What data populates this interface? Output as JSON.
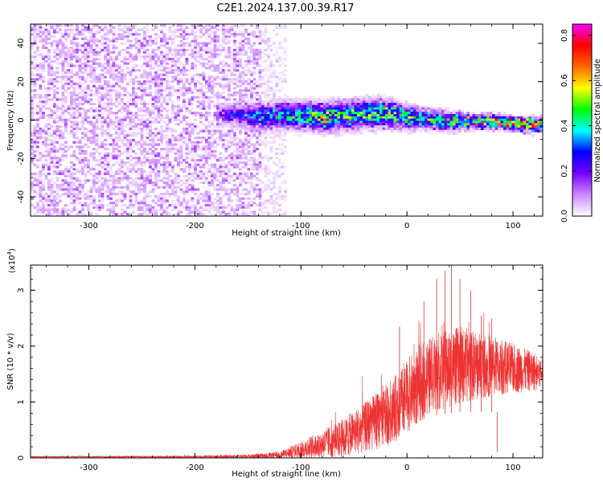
{
  "title": "C2E1.2024.137.00.39.R17",
  "chart_data": [
    {
      "type": "heatmap",
      "xlabel": "Height of straight line (km)",
      "ylabel": "Frequency (Hz)",
      "xlim": [
        -355,
        128
      ],
      "ylim": [
        -50,
        50
      ],
      "xticks": [
        -300,
        -200,
        -100,
        0,
        100
      ],
      "xtick_labels": [
        "-300",
        "-200",
        "-100",
        "0",
        "100"
      ],
      "yticks": [
        -40,
        -20,
        0,
        20,
        40
      ],
      "ytick_labels": [
        "-40",
        "-20",
        "0",
        "20",
        "40"
      ],
      "colorbar": {
        "label": "Normalized spectral amplitude",
        "range": [
          0.0,
          0.85
        ],
        "ticks": [
          0.0,
          0.2,
          0.4,
          0.6,
          0.8
        ],
        "tick_labels": [
          "0.0",
          "0.2",
          "0.4",
          "0.6",
          "0.8"
        ],
        "colors": [
          "#ffffff",
          "#cc88ff",
          "#7700ff",
          "#0000ff",
          "#00ffff",
          "#00ff00",
          "#ffff00",
          "#ff6600",
          "#ff0000",
          "#ff00ff"
        ]
      },
      "regions": [
        {
          "x": [
            -355,
            -140
          ],
          "y": [
            -50,
            50
          ],
          "typical_amplitude": 0.05,
          "peak_amplitude": 0.12
        },
        {
          "x": [
            -140,
            -115
          ],
          "y": [
            -50,
            50
          ],
          "typical_amplitude": 0.02,
          "peak_amplitude": 0.05
        }
      ],
      "ridge": {
        "x": [
          -180,
          -160,
          -140,
          -120,
          -100,
          -80,
          -60,
          -40,
          -20,
          0,
          20,
          40,
          60,
          80,
          100,
          120,
          128
        ],
        "center_freq": [
          4,
          3,
          2,
          3,
          3,
          2,
          3,
          4,
          4,
          2,
          1,
          0,
          0,
          0,
          -1,
          -2,
          -2
        ],
        "halfwidth_freq": [
          4,
          5,
          6,
          6,
          6,
          6,
          6,
          6,
          6,
          5,
          4,
          4,
          3,
          3,
          3,
          3,
          3
        ],
        "peak_amplitude": [
          0.2,
          0.35,
          0.4,
          0.45,
          0.5,
          0.65,
          0.6,
          0.6,
          0.6,
          0.55,
          0.55,
          0.6,
          0.7,
          0.8,
          0.8,
          0.85,
          0.85
        ]
      }
    },
    {
      "type": "line",
      "xlabel": "Height of straight line (km)",
      "ylabel": "SNR (10 * v/v)",
      "y_multiplier_label": "(x10",
      "y_multiplier_exponent": "4",
      "y_multiplier_close": ")",
      "xlim": [
        -355,
        128
      ],
      "ylim": [
        0,
        3.45
      ],
      "xticks": [
        -300,
        -200,
        -100,
        0,
        100
      ],
      "xtick_labels": [
        "-300",
        "-200",
        "-100",
        "0",
        "100"
      ],
      "yticks": [
        0,
        1,
        2,
        3
      ],
      "ytick_labels": [
        "0",
        "1",
        "2",
        "3"
      ],
      "color": "#ee3333",
      "envelope": {
        "x": [
          -355,
          -300,
          -200,
          -150,
          -120,
          -100,
          -80,
          -60,
          -40,
          -20,
          -10,
          0,
          10,
          20,
          30,
          40,
          50,
          60,
          80,
          100,
          120,
          128
        ],
        "y_mean": [
          0.02,
          0.02,
          0.02,
          0.03,
          0.05,
          0.15,
          0.25,
          0.35,
          0.55,
          0.75,
          0.9,
          1.1,
          1.3,
          1.45,
          1.55,
          1.6,
          1.65,
          1.65,
          1.65,
          1.6,
          1.55,
          1.5
        ],
        "y_spread": [
          0.01,
          0.01,
          0.02,
          0.03,
          0.06,
          0.15,
          0.25,
          0.35,
          0.45,
          0.55,
          0.6,
          0.65,
          0.7,
          0.7,
          0.7,
          0.7,
          0.7,
          0.65,
          0.55,
          0.45,
          0.35,
          0.3
        ]
      },
      "spikes": [
        {
          "x": -7,
          "y": 2.35
        },
        {
          "x": 16,
          "y": 2.8
        },
        {
          "x": 28,
          "y": 3.2
        },
        {
          "x": 36,
          "y": 3.35
        },
        {
          "x": 42,
          "y": 3.45
        },
        {
          "x": 50,
          "y": 3.2
        },
        {
          "x": 60,
          "y": 3.0
        },
        {
          "x": 70,
          "y": 2.55
        },
        {
          "x": 80,
          "y": 2.5
        },
        {
          "x": 85,
          "y": 0.1
        }
      ]
    }
  ]
}
